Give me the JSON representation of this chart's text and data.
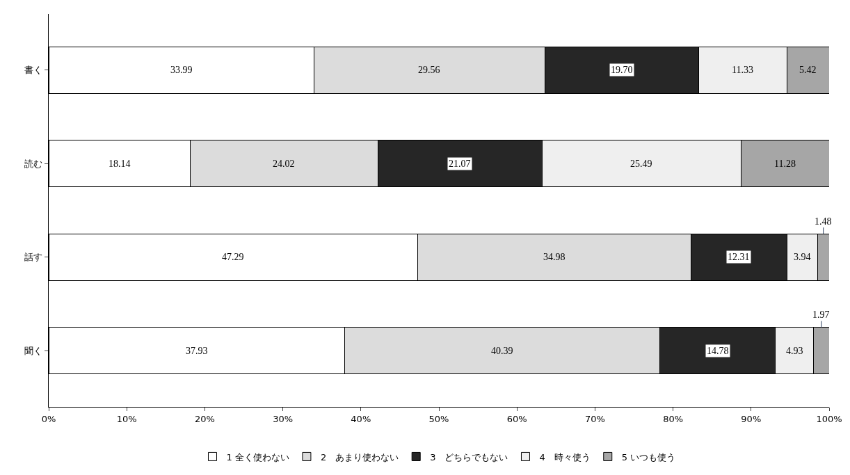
{
  "chart_data": {
    "type": "bar",
    "orientation": "horizontal",
    "stacked": true,
    "categories": [
      "書く",
      "読む",
      "話す",
      "聞く"
    ],
    "series": [
      {
        "name": "1 全く使わない",
        "color": "#ffffff",
        "values": [
          33.99,
          18.14,
          47.29,
          37.93
        ],
        "value_labels": [
          "33.99",
          "18.14",
          "47.29",
          "37.93"
        ]
      },
      {
        "name": "2　あまり使わない",
        "color": "#dcdcdc",
        "values": [
          29.56,
          24.02,
          34.98,
          40.39
        ],
        "value_labels": [
          "29.56",
          "24.02",
          "34.98",
          "40.39"
        ]
      },
      {
        "name": "3　どちらでもない",
        "color": "#262626",
        "values": [
          19.7,
          21.07,
          12.31,
          14.78
        ],
        "value_labels": [
          "19.70",
          "21.07",
          "12.31",
          "14.78"
        ]
      },
      {
        "name": "4　時々使う",
        "color": "#efefef",
        "values": [
          11.33,
          25.49,
          3.94,
          4.93
        ],
        "value_labels": [
          "11.33",
          "25.49",
          "3.94",
          "4.93"
        ]
      },
      {
        "name": "5 いつも使う",
        "color": "#a6a6a6",
        "values": [
          5.42,
          11.28,
          1.48,
          1.97
        ],
        "value_labels": [
          "5.42",
          "11.28",
          "1.48",
          "1.97"
        ]
      }
    ],
    "xlim": [
      0,
      100
    ],
    "xticks": [
      {
        "value": 0,
        "label": "0%"
      },
      {
        "value": 10,
        "label": "10%"
      },
      {
        "value": 20,
        "label": "20%"
      },
      {
        "value": 30,
        "label": "30%"
      },
      {
        "value": 40,
        "label": "40%"
      },
      {
        "value": 50,
        "label": "50%"
      },
      {
        "value": 60,
        "label": "60%"
      },
      {
        "value": 70,
        "label": "70%"
      },
      {
        "value": 80,
        "label": "80%"
      },
      {
        "value": 90,
        "label": "90%"
      },
      {
        "value": 100,
        "label": "100%"
      }
    ],
    "legend": "bottom"
  }
}
